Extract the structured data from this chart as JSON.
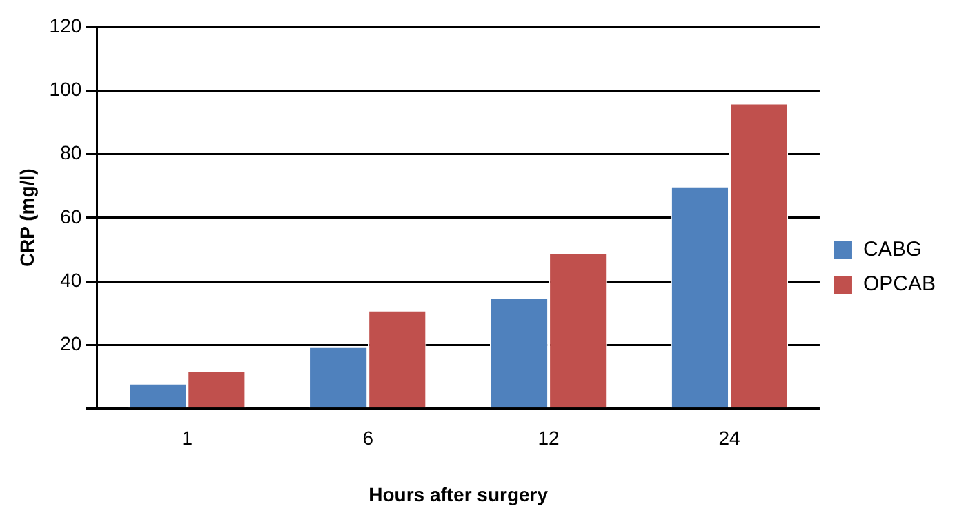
{
  "chart_data": {
    "type": "bar",
    "xlabel": "Hours after surgery",
    "ylabel": "CRP (mg/l)",
    "categories": [
      "1",
      "6",
      "12",
      "24"
    ],
    "series": [
      {
        "name": "CABG",
        "color": "#4f81bd",
        "values": [
          8,
          19.5,
          35,
          70
        ]
      },
      {
        "name": "OPCAB",
        "color": "#c0504d",
        "values": [
          12,
          31,
          49,
          96
        ]
      }
    ],
    "ylim": [
      0,
      120
    ],
    "yticks": [
      {
        "value": 0,
        "label": null
      },
      20,
      40,
      60,
      80,
      100,
      120
    ],
    "grid": "y",
    "legend": "right"
  }
}
